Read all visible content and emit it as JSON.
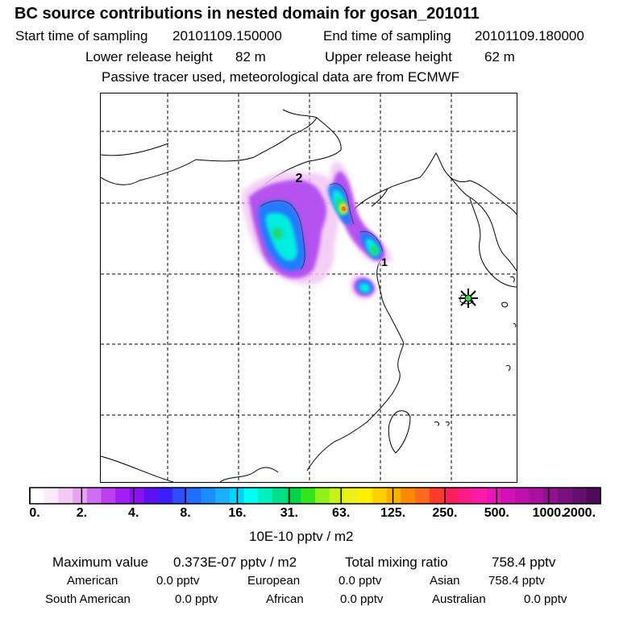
{
  "header": {
    "title": "BC  source contributions in nested domain for gosan_201011",
    "start_label": "Start time of sampling",
    "start_value": "20101109.150000",
    "end_label": "End time of sampling",
    "end_value": "20101109.180000",
    "lower_label": "Lower release height",
    "lower_value": "82 m",
    "upper_label": "Upper release height",
    "upper_value": "62 m",
    "tracer_note": "Passive tracer used, meteorological data are from ECMWF"
  },
  "map": {
    "contour_labels": [
      "2",
      "1"
    ],
    "receptor_marker": "asterisk-marker"
  },
  "colorbar": {
    "colors": [
      "#ffffff",
      "#fbe8fb",
      "#f3c8f5",
      "#e7a3f1",
      "#cf6df0",
      "#bb3ff0",
      "#a11df2",
      "#8a10ef",
      "#5d10f0",
      "#3a20ff",
      "#2f4dff",
      "#1f6cff",
      "#1c8cff",
      "#1cafff",
      "#00d4ff",
      "#00fff0",
      "#00f0c0",
      "#00e08a",
      "#00d44a",
      "#33e31c",
      "#8ff01a",
      "#c8f01a",
      "#eef01a",
      "#fff000",
      "#ffd000",
      "#ffaf00",
      "#ff8a00",
      "#ff6a1e",
      "#ff3c2c",
      "#ff1e5a",
      "#ff1a8a",
      "#ff1aa8",
      "#ea14b8",
      "#d410b4",
      "#be10ac",
      "#a8109e",
      "#921090",
      "#7a1080",
      "#640f70",
      "#4e0a5a"
    ],
    "tick_labels": [
      "0.",
      "2.",
      "4.",
      "8.",
      "16.",
      "31.",
      "63.",
      "125.",
      "250.",
      "500.",
      "1000.",
      "2000."
    ],
    "unit": "10E-10 pptv / m2"
  },
  "stats": {
    "max_label": "Maximum value",
    "max_value": "0.373E-07 pptv / m2",
    "total_label": "Total mixing ratio",
    "total_value": "758.4 pptv",
    "regions": [
      {
        "name": "American",
        "value": "0.0 pptv"
      },
      {
        "name": "European",
        "value": "0.0 pptv"
      },
      {
        "name": "Asian",
        "value": "758.4 pptv"
      },
      {
        "name": "South American",
        "value": "0.0 pptv"
      },
      {
        "name": "African",
        "value": "0.0 pptv"
      },
      {
        "name": "Australian",
        "value": "0.0 pptv"
      }
    ]
  }
}
